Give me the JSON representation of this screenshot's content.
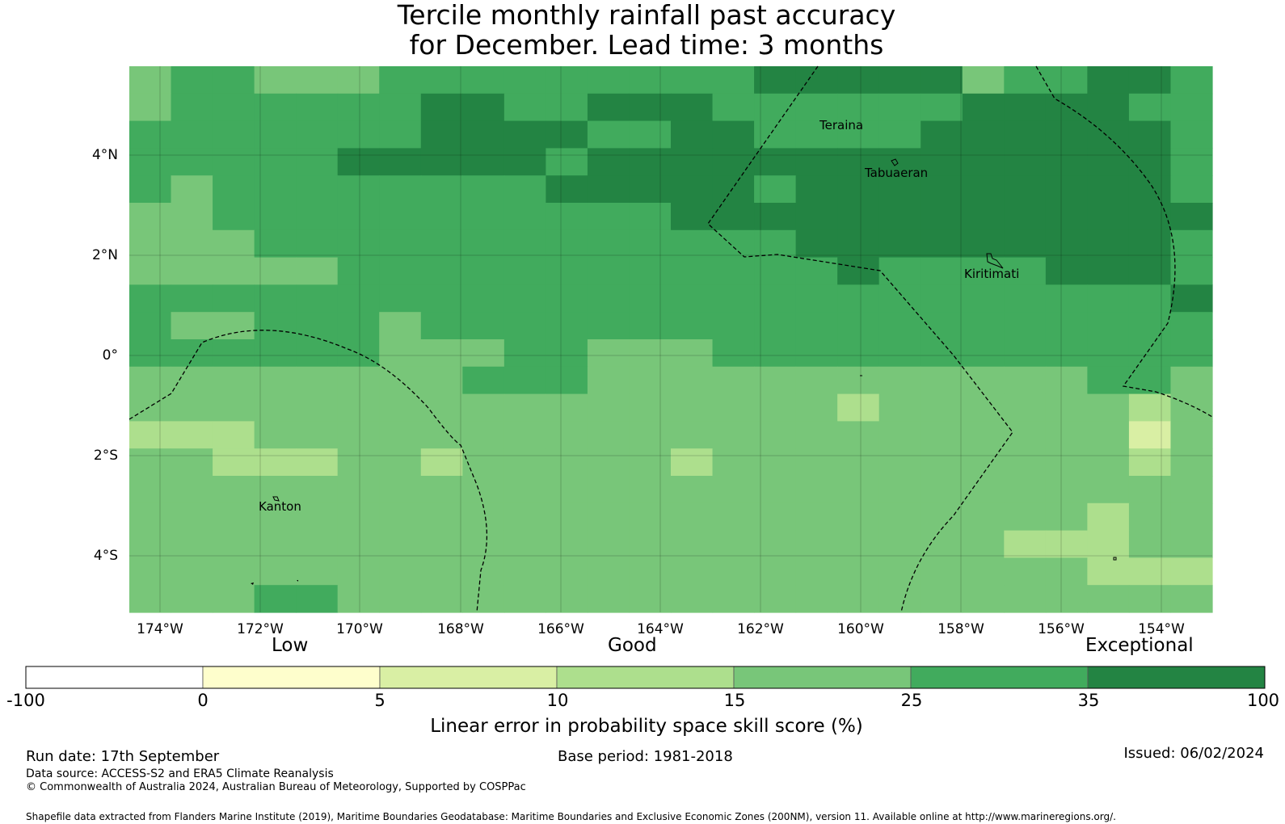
{
  "title": {
    "line1": "Tercile monthly rainfall past accuracy",
    "line2": "for December. Lead time: 3 months"
  },
  "map": {
    "lat_ticks": [
      "4°N",
      "2°N",
      "0°",
      "2°S",
      "4°S"
    ],
    "lon_ticks": [
      "174°W",
      "172°W",
      "170°W",
      "168°W",
      "166°W",
      "164°W",
      "162°W",
      "160°W",
      "158°W",
      "156°W",
      "154°W"
    ],
    "place_labels": [
      "Teraina",
      "Tabuaeran",
      "Kiritimati",
      "Kanton"
    ],
    "grid_lines": true
  },
  "colorbar": {
    "category_labels": [
      "Low",
      "Good",
      "Exceptional"
    ],
    "boundaries": [
      "-100",
      "0",
      "5",
      "10",
      "15",
      "25",
      "35",
      "100"
    ],
    "colors": [
      "#ffffff",
      "#fefecc",
      "#d9efa4",
      "#addf8d",
      "#78c679",
      "#41ab5d",
      "#238443"
    ],
    "label": "Linear error in probability space skill score (%)"
  },
  "footer": {
    "run_date": "Run date: 17th September",
    "base_period": "Base period: 1981-2018",
    "issued": "Issued: 06/02/2024",
    "data_source": "Data source: ACCESS-S2 and ERA5 Climate Reanalysis",
    "copyright": "© Commonwealth of Australia 2024, Australian Bureau of Meteorology, Supported by COSPPac",
    "shapefile": "Shapefile data extracted from Flanders Marine Institute (2019), Maritime Boundaries Geodatabase: Maritime Boundaries and Exclusive Economic Zones (200NM), version 11. Available online at http://www.marineregions.org/."
  }
}
